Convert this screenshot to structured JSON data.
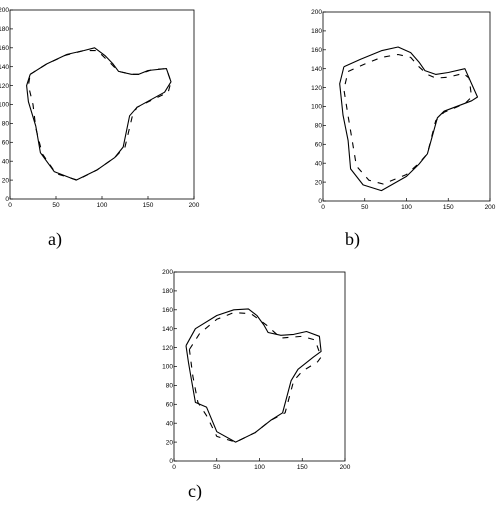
{
  "chart_data": [
    {
      "type": "line",
      "panel_label": "a)",
      "xlim": [
        0,
        200
      ],
      "ylim": [
        0,
        200
      ],
      "x_ticks": [
        0,
        50,
        100,
        150,
        200
      ],
      "y_ticks": [
        0,
        20,
        40,
        60,
        80,
        100,
        120,
        140,
        160,
        180,
        200
      ],
      "series": [
        {
          "style": "solid",
          "x": [
            22,
            40,
            62,
            80,
            92,
            103,
            112,
            118,
            132,
            140,
            150,
            170,
            175,
            168,
            138,
            130,
            123,
            114,
            95,
            72,
            48,
            33,
            28,
            20,
            18,
            22
          ],
          "y": [
            132,
            143,
            153,
            157,
            160,
            152,
            143,
            135,
            132,
            132,
            136,
            138,
            124,
            113,
            97,
            88,
            55,
            44,
            31,
            20,
            29,
            49,
            77,
            103,
            120,
            132
          ]
        },
        {
          "style": "dashed",
          "x": [
            22,
            40,
            60,
            80,
            95,
            110,
            118,
            132,
            140,
            155,
            170,
            175,
            172,
            138,
            133,
            125,
            114,
            95,
            73,
            50,
            35,
            28,
            25,
            20,
            22
          ],
          "y": [
            132,
            143,
            152,
            157,
            157,
            143,
            135,
            132,
            132,
            137,
            138,
            124,
            113,
            97,
            88,
            55,
            44,
            31,
            20,
            27,
            48,
            75,
            100,
            120,
            132
          ]
        }
      ]
    },
    {
      "type": "line",
      "panel_label": "b)",
      "xlim": [
        0,
        200
      ],
      "ylim": [
        0,
        200
      ],
      "x_ticks": [
        0,
        50,
        100,
        150,
        200
      ],
      "y_ticks": [
        0,
        20,
        40,
        60,
        80,
        100,
        120,
        140,
        160,
        180,
        200
      ],
      "series": [
        {
          "style": "solid",
          "x": [
            25,
            45,
            70,
            90,
            105,
            115,
            122,
            135,
            150,
            170,
            180,
            185,
            178,
            145,
            137,
            125,
            115,
            100,
            70,
            48,
            33,
            30,
            24,
            20,
            25
          ],
          "y": [
            142,
            150,
            159,
            163,
            157,
            147,
            138,
            134,
            136,
            140,
            120,
            110,
            106,
            95,
            88,
            50,
            39,
            26,
            11,
            17,
            34,
            64,
            91,
            124,
            142
          ]
        },
        {
          "style": "dashed",
          "x": [
            30,
            50,
            70,
            90,
            105,
            115,
            125,
            135,
            150,
            168,
            175,
            178,
            170,
            145,
            135,
            125,
            115,
            100,
            72,
            55,
            40,
            35,
            30,
            25,
            30
          ],
          "y": [
            137,
            145,
            152,
            155,
            152,
            142,
            134,
            130,
            131,
            135,
            130,
            110,
            103,
            94,
            85,
            50,
            40,
            28,
            18,
            22,
            37,
            64,
            90,
            118,
            137
          ]
        }
      ]
    },
    {
      "type": "line",
      "panel_label": "c)",
      "xlim": [
        0,
        200
      ],
      "ylim": [
        0,
        200
      ],
      "x_ticks": [
        0,
        50,
        100,
        150,
        200
      ],
      "y_ticks": [
        0,
        20,
        40,
        60,
        80,
        100,
        120,
        140,
        160,
        180,
        200
      ],
      "series": [
        {
          "style": "solid",
          "x": [
            14,
            25,
            50,
            70,
            87,
            97,
            105,
            110,
            125,
            140,
            155,
            170,
            172,
            163,
            145,
            137,
            127,
            113,
            95,
            72,
            50,
            38,
            25,
            20,
            17,
            14
          ],
          "y": [
            122,
            140,
            154,
            160,
            161,
            154,
            144,
            136,
            133,
            134,
            137,
            132,
            116,
            110,
            97,
            85,
            51,
            43,
            30,
            20,
            31,
            57,
            62,
            88,
            104,
            122
          ]
        },
        {
          "style": "dashed",
          "x": [
            18,
            30,
            50,
            70,
            90,
            108,
            125,
            150,
            165,
            172,
            168,
            150,
            140,
            130,
            113,
            95,
            72,
            50,
            38,
            28,
            22,
            18
          ],
          "y": [
            118,
            135,
            150,
            157,
            156,
            144,
            130,
            132,
            128,
            110,
            105,
            95,
            85,
            51,
            43,
            30,
            20,
            26,
            48,
            62,
            90,
            118
          ]
        }
      ]
    }
  ]
}
